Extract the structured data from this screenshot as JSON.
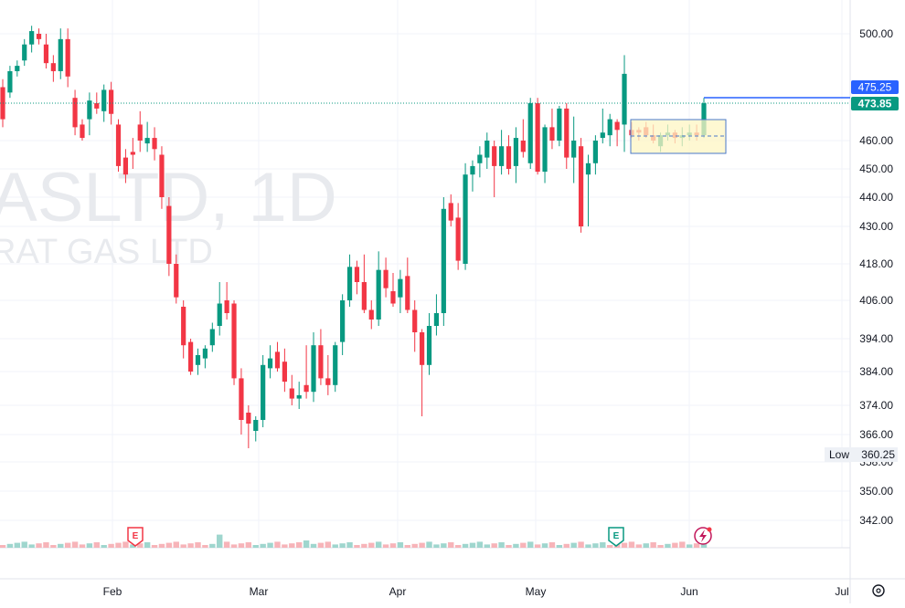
{
  "colors": {
    "up": "#089981",
    "down": "#f23645",
    "grid": "#f0f3fa",
    "axis_text": "#131722",
    "last_price": "#089981",
    "alert_line": "#2962ff",
    "watermark": "#e6e8ec",
    "box_fill": "#fff9c4",
    "box_stroke": "#4a78c9",
    "vol_up": "#9fd6ce",
    "vol_down": "#f7b4b9",
    "earnings_up": "#089981",
    "earnings_down": "#f23645",
    "dividend": "#c2185b"
  },
  "watermark": {
    "symbol": "ASLTD, 1D",
    "name": "RAT GAS LTD"
  },
  "icons": {
    "earnings_down": "E",
    "earnings_up": "E",
    "dividend": "dividend-bolt-icon",
    "settings": "gear-icon"
  },
  "labels": {
    "alert_price": "475.25",
    "last_price": "473.85",
    "low_label": "Low",
    "low_value": "360.25"
  },
  "chart_data": {
    "type": "candlestick",
    "y_ticks": [
      "500.00",
      "460.00",
      "450.00",
      "440.00",
      "430.00",
      "418.00",
      "406.00",
      "394.00",
      "384.00",
      "374.00",
      "366.00",
      "358.00",
      "350.00",
      "342.00"
    ],
    "x_ticks": [
      "Feb",
      "Mar",
      "Apr",
      "May",
      "Jun",
      "Jul"
    ],
    "ohlc": [
      [
        480,
        483,
        465,
        468
      ],
      [
        478,
        488,
        476,
        486
      ],
      [
        486,
        490,
        484,
        488
      ],
      [
        490,
        498,
        488,
        496
      ],
      [
        496,
        503,
        493,
        501
      ],
      [
        500,
        502,
        496,
        498
      ],
      [
        496,
        500,
        487,
        489
      ],
      [
        489,
        492,
        482,
        486
      ],
      [
        486,
        502,
        483,
        498
      ],
      [
        498,
        502,
        480,
        484
      ],
      [
        476,
        479,
        462,
        465
      ],
      [
        466,
        468,
        460,
        461
      ],
      [
        468,
        478,
        462,
        475
      ],
      [
        474,
        478,
        470,
        472
      ],
      [
        471,
        481,
        467,
        479
      ],
      [
        479,
        482,
        466,
        470
      ],
      [
        466,
        468,
        449,
        451
      ],
      [
        454,
        457,
        445,
        448
      ],
      [
        456,
        461,
        450,
        455
      ],
      [
        466,
        471,
        456,
        460
      ],
      [
        459,
        467,
        456,
        461
      ],
      [
        461,
        465,
        453,
        457
      ],
      [
        455,
        458,
        436,
        440
      ],
      [
        437,
        440,
        414,
        418
      ],
      [
        418,
        421,
        405,
        407
      ],
      [
        404,
        406,
        388,
        392
      ],
      [
        393,
        394,
        383,
        384
      ],
      [
        386,
        391,
        383,
        389
      ],
      [
        388,
        392,
        385,
        391
      ],
      [
        392,
        399,
        390,
        397
      ],
      [
        398,
        412,
        395,
        405
      ],
      [
        406,
        412,
        400,
        402
      ],
      [
        405,
        406,
        380,
        382
      ],
      [
        382,
        385,
        366,
        370
      ],
      [
        372,
        374,
        362,
        369
      ],
      [
        367,
        371,
        364,
        370
      ],
      [
        370,
        389,
        368,
        386
      ],
      [
        385,
        392,
        382,
        388
      ],
      [
        390,
        393,
        384,
        385
      ],
      [
        387,
        391,
        378,
        381
      ],
      [
        379,
        383,
        374,
        376
      ],
      [
        376,
        381,
        373,
        377
      ],
      [
        380,
        392,
        376,
        378
      ],
      [
        378,
        396,
        375,
        392
      ],
      [
        392,
        397,
        380,
        382
      ],
      [
        382,
        389,
        377,
        380
      ],
      [
        380,
        393,
        378,
        392
      ],
      [
        393,
        408,
        389,
        406
      ],
      [
        406,
        421,
        404,
        417
      ],
      [
        417,
        419,
        408,
        412
      ],
      [
        412,
        421,
        402,
        403
      ],
      [
        403,
        406,
        397,
        400
      ],
      [
        400,
        422,
        398,
        416
      ],
      [
        416,
        420,
        407,
        410
      ],
      [
        409,
        415,
        404,
        405
      ],
      [
        407,
        416,
        402,
        413
      ],
      [
        414,
        420,
        402,
        403
      ],
      [
        403,
        406,
        390,
        396
      ],
      [
        396,
        397,
        371,
        386
      ],
      [
        386,
        402,
        383,
        398
      ],
      [
        398,
        408,
        395,
        402
      ],
      [
        402,
        440,
        398,
        436
      ],
      [
        438,
        441,
        430,
        432
      ],
      [
        433,
        438,
        416,
        419
      ],
      [
        418,
        452,
        416,
        448
      ],
      [
        448,
        453,
        442,
        451
      ],
      [
        452,
        458,
        447,
        455
      ],
      [
        454,
        463,
        450,
        460
      ],
      [
        458,
        460,
        440,
        451
      ],
      [
        451,
        464,
        448,
        458
      ],
      [
        458,
        462,
        448,
        450
      ],
      [
        451,
        465,
        445,
        461
      ],
      [
        460,
        468,
        454,
        456
      ],
      [
        452,
        476,
        450,
        474
      ],
      [
        474,
        476,
        448,
        449
      ],
      [
        449,
        466,
        445,
        465
      ],
      [
        465,
        472,
        457,
        460
      ],
      [
        460,
        473,
        458,
        472
      ],
      [
        472,
        474,
        450,
        454
      ],
      [
        454,
        469,
        445,
        460
      ],
      [
        458,
        461,
        428,
        430
      ],
      [
        448,
        455,
        430,
        452
      ],
      [
        452,
        462,
        448,
        460
      ],
      [
        461,
        472,
        459,
        463
      ],
      [
        462,
        470,
        458,
        468
      ],
      [
        467,
        468,
        458,
        464
      ],
      [
        466,
        492,
        456,
        485
      ],
      [
        464,
        467,
        461,
        462
      ],
      [
        464,
        465,
        460,
        463
      ],
      [
        465,
        467,
        461,
        462
      ],
      [
        462,
        466,
        459,
        460
      ],
      [
        458,
        463,
        456,
        462
      ],
      [
        462,
        466,
        460,
        463
      ],
      [
        463,
        464,
        459,
        461
      ],
      [
        461,
        465,
        458,
        462
      ],
      [
        462,
        466,
        460,
        463
      ],
      [
        463,
        466,
        460,
        462
      ],
      [
        462,
        476,
        461,
        474
      ]
    ],
    "volume_up_index": [
      1,
      2,
      3,
      4,
      8,
      12,
      14,
      18,
      20,
      29,
      30,
      35,
      36,
      37,
      42,
      43,
      46,
      47,
      48,
      52,
      55,
      59,
      60,
      61,
      64,
      65,
      66,
      67,
      69,
      71,
      73,
      75,
      77,
      79,
      81,
      82,
      83,
      89,
      92,
      95,
      97,
      98
    ],
    "title": "",
    "xlabel": "",
    "ylabel": "",
    "grid": true,
    "legend": "none"
  }
}
